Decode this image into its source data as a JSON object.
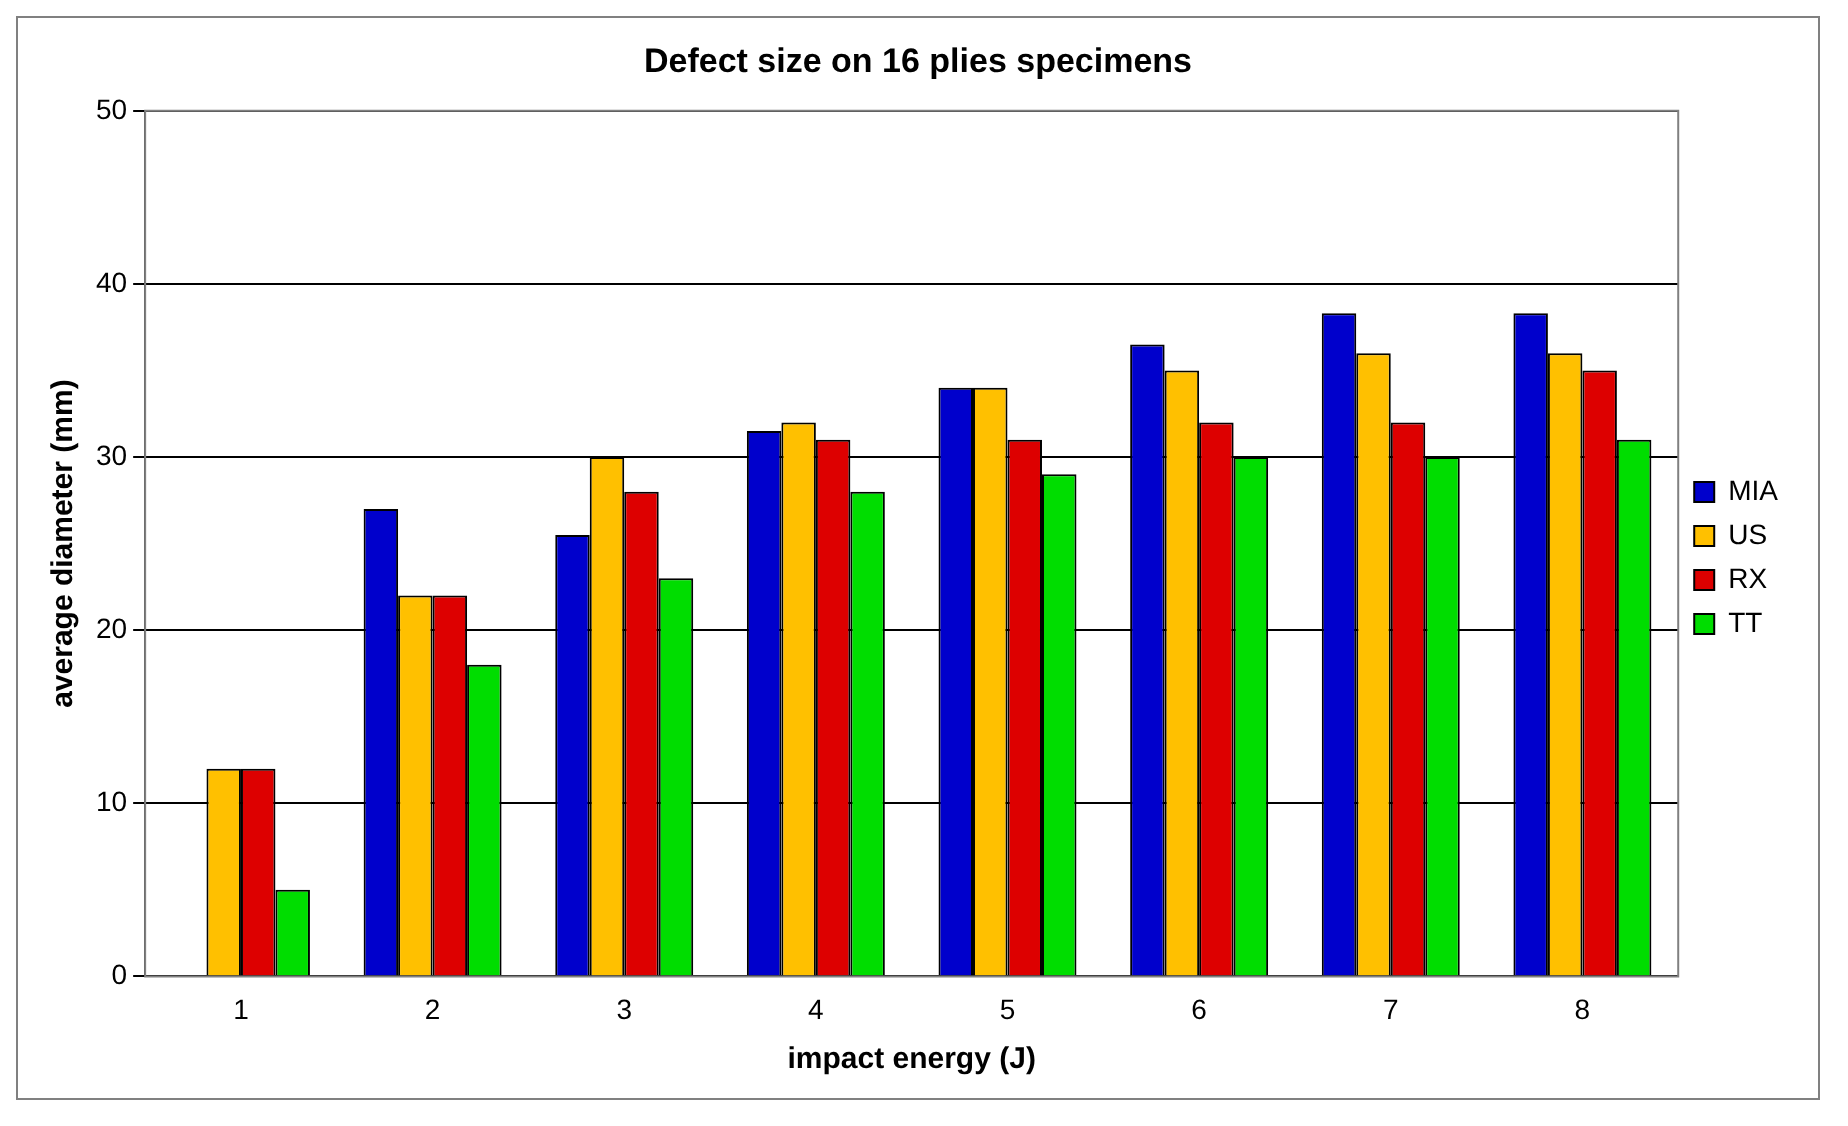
{
  "chart_data": {
    "type": "bar",
    "title": "Defect size on 16 plies specimens",
    "xlabel": "impact energy (J)",
    "ylabel": "average diameter (mm)",
    "categories": [
      "1",
      "2",
      "3",
      "4",
      "5",
      "6",
      "7",
      "8"
    ],
    "series": [
      {
        "name": "MIA",
        "color": "#0000cc",
        "values": [
          null,
          27,
          25.5,
          31.5,
          34,
          36.5,
          38.3,
          38.3
        ]
      },
      {
        "name": "US",
        "color": "#ffc000",
        "values": [
          12,
          22,
          30,
          32,
          34,
          35,
          36,
          36
        ]
      },
      {
        "name": "RX",
        "color": "#dd0000",
        "values": [
          12,
          22,
          28,
          31,
          31,
          32,
          32,
          35
        ]
      },
      {
        "name": "TT",
        "color": "#00dd00",
        "values": [
          5,
          18,
          23,
          28,
          29,
          30,
          30,
          31
        ]
      }
    ],
    "ylim": [
      0,
      50
    ],
    "yticks": [
      0,
      10,
      20,
      30,
      40,
      50
    ],
    "grid": "y",
    "legend": "right"
  }
}
